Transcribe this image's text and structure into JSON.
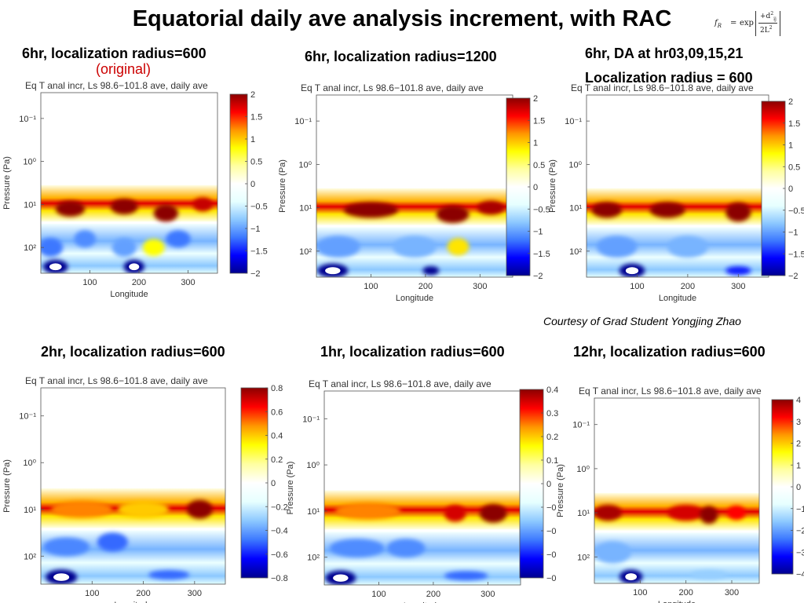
{
  "title": "Equatorial daily ave analysis increment, with RAC",
  "formula": {
    "f": "f",
    "sub": "R",
    "eq": "=",
    "exp": "exp",
    "num": "+d",
    "den": "2L"
  },
  "courtesy": "Courtesy of Grad Student Yongjing Zhao",
  "panels": [
    {
      "heading": "6hr, localization radius=600",
      "note": "(original)"
    },
    {
      "heading": "6hr, localization radius=1200",
      "note": ""
    },
    {
      "heading": "6hr, DA at hr03,09,15,21",
      "heading2": "Localization radius = 600"
    },
    {
      "heading": "2hr, localization radius=600"
    },
    {
      "heading": "1hr, localization radius=600"
    },
    {
      "heading": "12hr, localization radius=600"
    }
  ],
  "colors": {
    "colormap": [
      "#00008f",
      "#0000ff",
      "#3c78ff",
      "#8cc8ff",
      "#e6ffff",
      "#ffffff",
      "#ffffa0",
      "#ffff00",
      "#ff9600",
      "#ff0000",
      "#8b0000"
    ]
  },
  "chart_data": [
    {
      "type": "heatmap",
      "title": "Eq T anal incr, Ls 98.6−101.8 ave, daily ave",
      "xlabel": "Longitude",
      "ylabel": "Pressure (Pa)",
      "xticks": [
        "100",
        "200",
        "300"
      ],
      "xtick_values": [
        100,
        200,
        300
      ],
      "xlim": [
        0,
        360
      ],
      "yscale": "log",
      "yticks": [
        "10⁻¹",
        "10⁰",
        "10¹",
        "10²"
      ],
      "ytick_values": [
        -1,
        0,
        1,
        2
      ],
      "ylim_log10": [
        -1.6,
        2.6
      ],
      "colorbar_ticks": [
        "2",
        "1.5",
        "1",
        "0.5",
        "0",
        "−0.5",
        "−1",
        "−1.5",
        "−2"
      ],
      "clim": [
        -2,
        2
      ],
      "features": [
        {
          "lon": 60,
          "logp": 1.1,
          "value": 2.4,
          "rlon": 30,
          "rlogp": 0.18
        },
        {
          "lon": 170,
          "logp": 1.05,
          "value": 2.2,
          "rlon": 28,
          "rlogp": 0.18
        },
        {
          "lon": 255,
          "logp": 1.2,
          "value": 2.6,
          "rlon": 25,
          "rlogp": 0.2
        },
        {
          "lon": 330,
          "logp": 1.0,
          "value": 1.8,
          "rlon": 20,
          "rlogp": 0.16
        },
        {
          "lon": 20,
          "logp": 2.0,
          "value": -1.2,
          "rlon": 25,
          "rlogp": 0.22
        },
        {
          "lon": 90,
          "logp": 1.8,
          "value": -1.1,
          "rlon": 22,
          "rlogp": 0.2
        },
        {
          "lon": 170,
          "logp": 2.0,
          "value": -1.0,
          "rlon": 25,
          "rlogp": 0.22
        },
        {
          "lon": 280,
          "logp": 1.8,
          "value": -1.2,
          "rlon": 25,
          "rlogp": 0.2
        },
        {
          "lon": 30,
          "logp": 2.45,
          "value": -3.0,
          "rlon": 18,
          "rlogp": 0.1
        },
        {
          "lon": 190,
          "logp": 2.45,
          "value": -2.5,
          "rlon": 15,
          "rlogp": 0.1
        },
        {
          "lon": 230,
          "logp": 2.0,
          "value": 0.8,
          "rlon": 22,
          "rlogp": 0.2
        }
      ]
    },
    {
      "type": "heatmap",
      "title": "Eq T anal incr, Ls 98.6−101.8 ave, daily ave",
      "xlabel": "Longitude",
      "ylabel": "Pressure (Pa)",
      "xticks": [
        "100",
        "200",
        "300"
      ],
      "xtick_values": [
        100,
        200,
        300
      ],
      "xlim": [
        0,
        360
      ],
      "yscale": "log",
      "yticks": [
        "10⁻¹",
        "10⁰",
        "10¹",
        "10²"
      ],
      "ytick_values": [
        -1,
        0,
        1,
        2
      ],
      "ylim_log10": [
        -1.6,
        2.6
      ],
      "colorbar_ticks": [
        "2",
        "1.5",
        "1",
        "0.5",
        "0",
        "−0.5",
        "−1",
        "−1.5",
        "−2"
      ],
      "clim": [
        -2,
        2
      ],
      "features": [
        {
          "lon": 100,
          "logp": 1.05,
          "value": 2.2,
          "rlon": 50,
          "rlogp": 0.18
        },
        {
          "lon": 250,
          "logp": 1.15,
          "value": 2.5,
          "rlon": 30,
          "rlogp": 0.2
        },
        {
          "lon": 320,
          "logp": 1.0,
          "value": 1.9,
          "rlon": 25,
          "rlogp": 0.16
        },
        {
          "lon": 40,
          "logp": 1.9,
          "value": -1.0,
          "rlon": 40,
          "rlogp": 0.25
        },
        {
          "lon": 180,
          "logp": 1.9,
          "value": -0.9,
          "rlon": 40,
          "rlogp": 0.25
        },
        {
          "lon": 30,
          "logp": 2.45,
          "value": -3.0,
          "rlon": 20,
          "rlogp": 0.1
        },
        {
          "lon": 210,
          "logp": 2.45,
          "value": -2.0,
          "rlon": 15,
          "rlogp": 0.1
        },
        {
          "lon": 260,
          "logp": 1.9,
          "value": 0.9,
          "rlon": 20,
          "rlogp": 0.2
        }
      ]
    },
    {
      "type": "heatmap",
      "title": "Eq T anal incr, Ls 98.6−101.8 ave, daily ave",
      "xlabel": "Longitude",
      "ylabel": "Pressure (Pa)",
      "xticks": [
        "100",
        "200",
        "300"
      ],
      "xtick_values": [
        100,
        200,
        300
      ],
      "xlim": [
        0,
        360
      ],
      "yscale": "log",
      "yticks": [
        "10⁻¹",
        "10⁰",
        "10¹",
        "10²"
      ],
      "ytick_values": [
        -1,
        0,
        1,
        2
      ],
      "ylim_log10": [
        -1.6,
        2.6
      ],
      "colorbar_ticks": [
        "2",
        "1.5",
        "1",
        "0.5",
        "0",
        "−0.5",
        "−1",
        "−1.5",
        "−2"
      ],
      "clim": [
        -2,
        2
      ],
      "features": [
        {
          "lon": 40,
          "logp": 1.05,
          "value": 2.0,
          "rlon": 30,
          "rlogp": 0.18
        },
        {
          "lon": 160,
          "logp": 1.05,
          "value": 2.1,
          "rlon": 35,
          "rlogp": 0.18
        },
        {
          "lon": 300,
          "logp": 1.1,
          "value": 2.8,
          "rlon": 25,
          "rlogp": 0.22
        },
        {
          "lon": 60,
          "logp": 1.9,
          "value": -1.0,
          "rlon": 40,
          "rlogp": 0.25
        },
        {
          "lon": 200,
          "logp": 1.9,
          "value": -0.9,
          "rlon": 40,
          "rlogp": 0.25
        },
        {
          "lon": 90,
          "logp": 2.45,
          "value": -2.5,
          "rlon": 18,
          "rlogp": 0.1
        },
        {
          "lon": 300,
          "logp": 2.45,
          "value": -1.5,
          "rlon": 25,
          "rlogp": 0.1
        }
      ]
    },
    {
      "type": "heatmap",
      "title": "Eq T anal incr, Ls 98.6−101.8 ave, daily ave",
      "xlabel": "Longitude",
      "ylabel": "Pressure (Pa)",
      "xticks": [
        "100",
        "200",
        "300"
      ],
      "xtick_values": [
        100,
        200,
        300
      ],
      "xlim": [
        0,
        360
      ],
      "yscale": "log",
      "yticks": [
        "10⁻¹",
        "10⁰",
        "10¹",
        "10²"
      ],
      "ytick_values": [
        -1,
        0,
        1,
        2
      ],
      "ylim_log10": [
        -1.6,
        2.6
      ],
      "colorbar_ticks": [
        "0.8",
        "0.6",
        "0.4",
        "0.2",
        "0",
        "−0.2",
        "−0.4",
        "−0.6",
        "−0.8"
      ],
      "clim": [
        -0.8,
        0.8
      ],
      "features": [
        {
          "lon": 80,
          "logp": 1.0,
          "value": 0.5,
          "rlon": 60,
          "rlogp": 0.18
        },
        {
          "lon": 200,
          "logp": 1.0,
          "value": 0.4,
          "rlon": 50,
          "rlogp": 0.18
        },
        {
          "lon": 310,
          "logp": 1.0,
          "value": 1.1,
          "rlon": 25,
          "rlogp": 0.2
        },
        {
          "lon": 50,
          "logp": 1.8,
          "value": -0.45,
          "rlon": 45,
          "rlogp": 0.2
        },
        {
          "lon": 140,
          "logp": 1.7,
          "value": -0.5,
          "rlon": 30,
          "rlogp": 0.2
        },
        {
          "lon": 40,
          "logp": 2.45,
          "value": -1.2,
          "rlon": 22,
          "rlogp": 0.1
        },
        {
          "lon": 250,
          "logp": 2.4,
          "value": -0.5,
          "rlon": 40,
          "rlogp": 0.1
        }
      ]
    },
    {
      "type": "heatmap",
      "title": "Eq T anal incr, Ls 98.6−101.8 ave, daily ave",
      "xlabel": "Longitude",
      "ylabel": "Pressure (Pa)",
      "xticks": [
        "100",
        "200",
        "300"
      ],
      "xtick_values": [
        100,
        200,
        300
      ],
      "xlim": [
        0,
        360
      ],
      "yscale": "log",
      "yticks": [
        "10⁻¹",
        "10⁰",
        "10¹",
        "10²"
      ],
      "ytick_values": [
        -1,
        0,
        1,
        2
      ],
      "ylim_log10": [
        -1.6,
        2.6
      ],
      "colorbar_ticks": [
        "0.4",
        "0.3",
        "0.2",
        "0.1",
        "0",
        "−0",
        "−0",
        "−0",
        "−0"
      ],
      "clim": [
        -0.4,
        0.4
      ],
      "features": [
        {
          "lon": 80,
          "logp": 1.0,
          "value": 0.25,
          "rlon": 60,
          "rlogp": 0.18
        },
        {
          "lon": 240,
          "logp": 1.05,
          "value": 0.35,
          "rlon": 20,
          "rlogp": 0.18
        },
        {
          "lon": 310,
          "logp": 1.05,
          "value": 0.55,
          "rlon": 25,
          "rlogp": 0.2
        },
        {
          "lon": 60,
          "logp": 1.8,
          "value": -0.22,
          "rlon": 50,
          "rlogp": 0.2
        },
        {
          "lon": 150,
          "logp": 1.8,
          "value": -0.22,
          "rlon": 35,
          "rlogp": 0.2
        },
        {
          "lon": 30,
          "logp": 2.45,
          "value": -0.6,
          "rlon": 20,
          "rlogp": 0.1
        },
        {
          "lon": 260,
          "logp": 2.4,
          "value": -0.25,
          "rlon": 40,
          "rlogp": 0.1
        }
      ]
    },
    {
      "type": "heatmap",
      "title": "Eq T anal incr, Ls 98.6−101.8 ave, daily ave",
      "xlabel": "Longitude",
      "ylabel": "Pressure (Pa)",
      "xticks": [
        "100",
        "200",
        "300"
      ],
      "xtick_values": [
        100,
        200,
        300
      ],
      "xlim": [
        0,
        360
      ],
      "yscale": "log",
      "yticks": [
        "10⁻¹",
        "10⁰",
        "10¹",
        "10²"
      ],
      "ytick_values": [
        -1,
        0,
        1,
        2
      ],
      "ylim_log10": [
        -1.6,
        2.6
      ],
      "colorbar_ticks": [
        "4",
        "3",
        "2",
        "1",
        "0",
        "−1",
        "−2",
        "−3",
        "−4"
      ],
      "clim": [
        -4,
        4
      ],
      "features": [
        {
          "lon": 30,
          "logp": 1.0,
          "value": 3.8,
          "rlon": 30,
          "rlogp": 0.18
        },
        {
          "lon": 200,
          "logp": 1.0,
          "value": 3.5,
          "rlon": 40,
          "rlogp": 0.18
        },
        {
          "lon": 250,
          "logp": 1.05,
          "value": 4.5,
          "rlon": 20,
          "rlogp": 0.2
        },
        {
          "lon": 310,
          "logp": 1.0,
          "value": 3.2,
          "rlon": 20,
          "rlogp": 0.16
        },
        {
          "lon": 40,
          "logp": 1.9,
          "value": -1.8,
          "rlon": 40,
          "rlogp": 0.25
        },
        {
          "lon": 80,
          "logp": 2.45,
          "value": -5.0,
          "rlon": 18,
          "rlogp": 0.1
        },
        {
          "lon": 250,
          "logp": 2.4,
          "value": -1.5,
          "rlon": 40,
          "rlogp": 0.1
        }
      ]
    }
  ]
}
